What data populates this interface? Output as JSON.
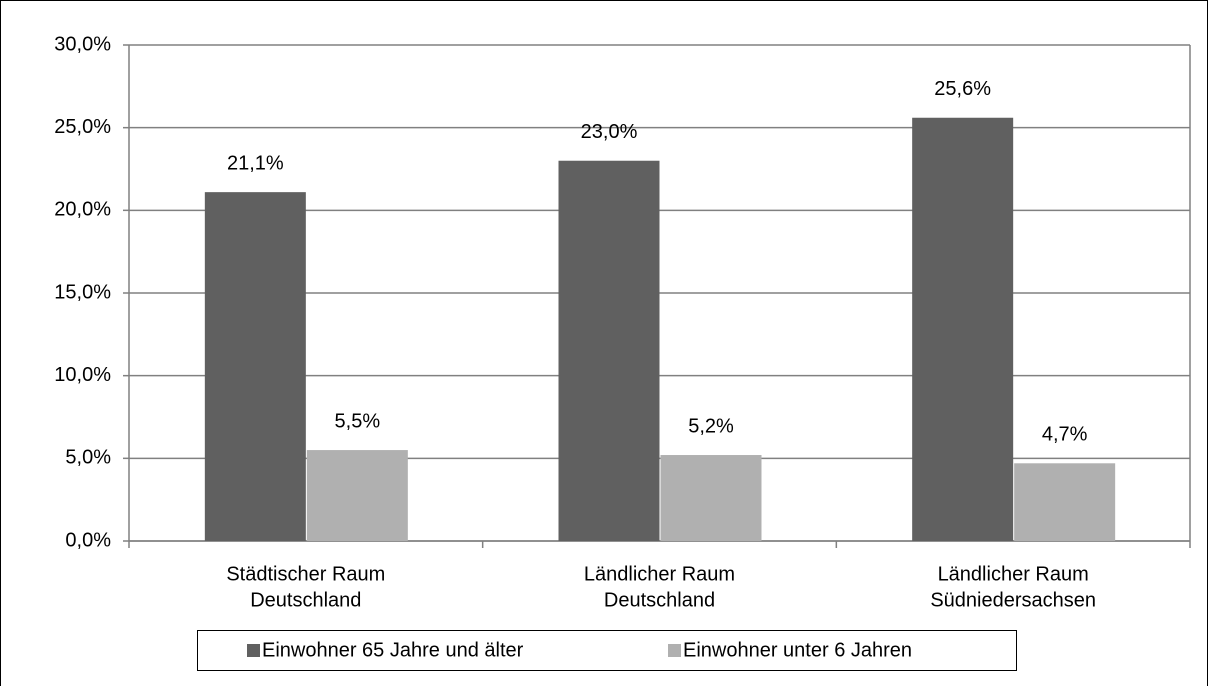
{
  "chart_data": {
    "type": "bar",
    "categories": [
      [
        "Städtischer Raum",
        "Deutschland"
      ],
      [
        "Ländlicher Raum",
        "Deutschland"
      ],
      [
        "Ländlicher Raum",
        "Südniedersachsen"
      ]
    ],
    "series": [
      {
        "name": "Einwohner 65 Jahre und älter",
        "color": "#606060",
        "values": [
          21.1,
          23.0,
          25.6
        ],
        "value_labels": [
          "21,1%",
          "23,0%",
          "25,6%"
        ]
      },
      {
        "name": "Einwohner unter 6 Jahren",
        "color": "#b0b0b0",
        "values": [
          5.5,
          5.2,
          4.7
        ],
        "value_labels": [
          "5,5%",
          "5,2%",
          "4,7%"
        ]
      }
    ],
    "ylim": [
      0,
      30
    ],
    "yticks": [
      {
        "value": 0,
        "label": "0,0%"
      },
      {
        "value": 5,
        "label": "5,0%"
      },
      {
        "value": 10,
        "label": "10,0%"
      },
      {
        "value": 15,
        "label": "15,0%"
      },
      {
        "value": 20,
        "label": "20,0%"
      },
      {
        "value": 25,
        "label": "25,0%"
      },
      {
        "value": 30,
        "label": "30,0%"
      }
    ],
    "grid": true
  }
}
